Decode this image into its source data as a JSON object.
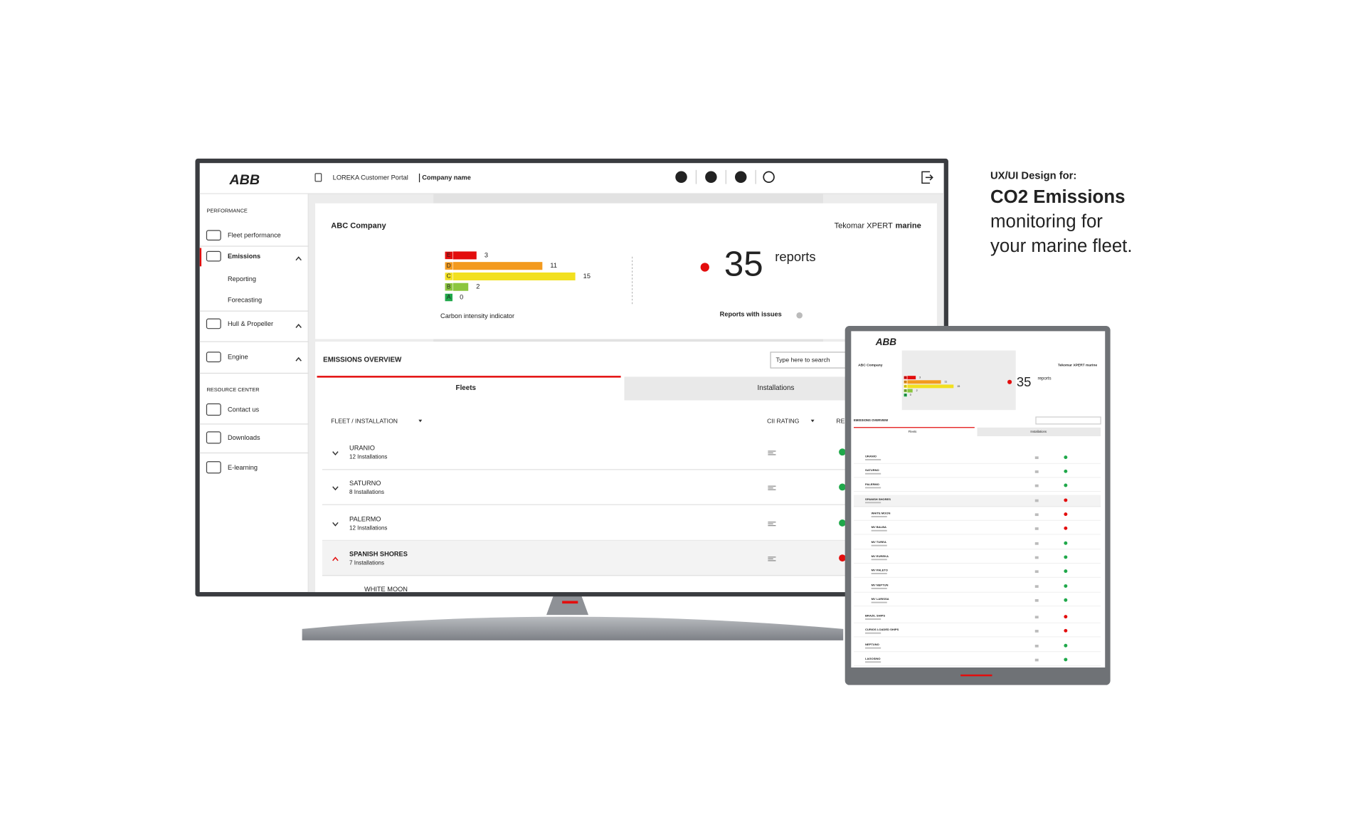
{
  "side_text": {
    "eyebrow": "UX/UI Design for:",
    "headline": "CO2 Emissions",
    "lines": [
      "monitoring for",
      "your marine fleet."
    ]
  },
  "app": {
    "logo": "ABB",
    "portal": "LOREKA Customer Portal",
    "company_name": "Company name",
    "sidebar": {
      "performance_title": "PERFORMANCE",
      "performance_items": [
        "Fleet performance",
        "Emissions",
        "Reporting",
        "Forecasting",
        "Hull & Propeller",
        "Engine"
      ],
      "resource_title": "RESOURCE CENTER",
      "resource_items": [
        "Contact us",
        "Downloads",
        "E-learning"
      ]
    },
    "card": {
      "company": "ABC Company",
      "product_prefix": "Tekomar XPERT",
      "product_suffix": "marine"
    },
    "reports": {
      "value": 35,
      "unit": "reports",
      "caption": "Reports with issues"
    },
    "overview": {
      "title": "EMISSIONS OVERVIEW",
      "search_placeholder": "Type here to search",
      "tabs": [
        "Fleets",
        "Installations"
      ],
      "columns": [
        "FLEET / INSTALLATION",
        "CII RATING",
        "REPORTS WITH ISSUES"
      ],
      "rows": [
        {
          "name": "URANIO",
          "sub": "12 Installations"
        },
        {
          "name": "SATURNO",
          "sub": "8 Installations"
        },
        {
          "name": "PALERMO",
          "sub": "12 Installations"
        },
        {
          "name": "SPANISH SHORES",
          "sub": "7 Installations"
        },
        {
          "name": "WHITE MOON"
        }
      ]
    }
  },
  "chart_data": {
    "type": "bar",
    "title": "Carbon intensity indicator",
    "categories": [
      "E",
      "D",
      "C",
      "B",
      "A"
    ],
    "values": [
      3,
      11,
      15,
      2,
      0
    ],
    "colors": [
      "#e30d0d",
      "#f39a1e",
      "#f2e01f",
      "#8cc63f",
      "#1fa84a"
    ]
  },
  "tablet": {
    "logo": "ABB",
    "company": "ABC Company",
    "product": "Tekomar XPERT marine",
    "title": "EMISSIONS OVERVIEW",
    "tabs": [
      "Fleets",
      "Installations"
    ],
    "rows": [
      "URANIO",
      "SATURNO",
      "PALERMO",
      "SPANISH SHORES",
      "WHITE MOON",
      "MV BALBA",
      "MV TUREA",
      "MV EUREKA",
      "MV PALETO",
      "MV NEPTUN",
      "MV LARISSA",
      "BRAZIL SHIPS",
      "CURIOS LOADED SHIPS",
      "NEPTUNO",
      "LAGOSINO"
    ]
  }
}
